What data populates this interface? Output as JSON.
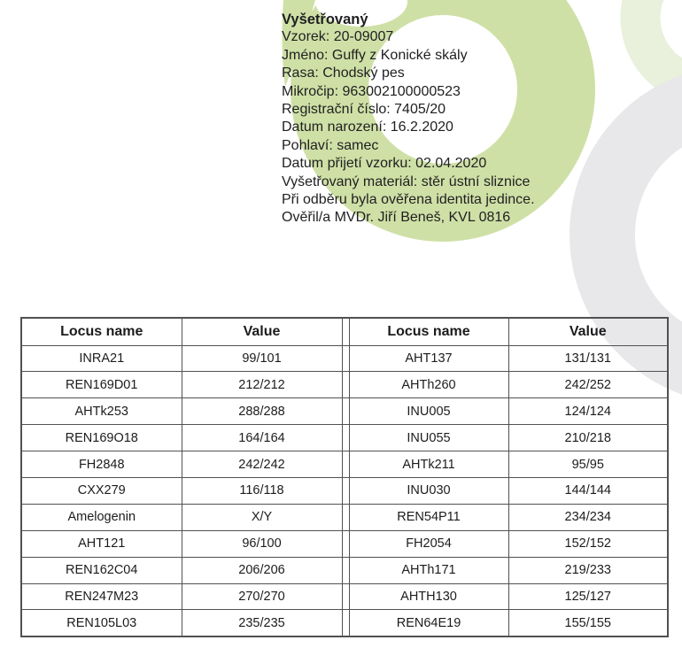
{
  "header": {
    "title": "Vyšetřovaný",
    "lines": [
      "Vzorek: 20-09007",
      "Jméno: Guffy z Konické skály",
      "Rasa: Chodský pes",
      "Mikročip: 963002100000523",
      "Registrační číslo: 7405/20",
      "Datum narození: 16.2.2020",
      "Pohlaví: samec",
      "Datum přijetí vzorku: 02.04.2020",
      "Vyšetřovaný materiál: stěr ústní sliznice",
      "Při odběru byla ověřena identita jedince.",
      "Ověřil/a MVDr. Jiří Beneš, KVL 0816"
    ]
  },
  "table": {
    "col_locus": "Locus name",
    "col_value": "Value",
    "left_rows": [
      {
        "locus": "INRA21",
        "value": "99/101"
      },
      {
        "locus": "REN169D01",
        "value": "212/212"
      },
      {
        "locus": "AHTk253",
        "value": "288/288"
      },
      {
        "locus": "REN169O18",
        "value": "164/164"
      },
      {
        "locus": "FH2848",
        "value": "242/242"
      },
      {
        "locus": "CXX279",
        "value": "116/118"
      },
      {
        "locus": "Amelogenin",
        "value": "X/Y"
      },
      {
        "locus": "AHT121",
        "value": "96/100"
      },
      {
        "locus": "REN162C04",
        "value": "206/206"
      },
      {
        "locus": "REN247M23",
        "value": "270/270"
      },
      {
        "locus": "REN105L03",
        "value": "235/235"
      }
    ],
    "right_rows": [
      {
        "locus": "AHT137",
        "value": "131/131"
      },
      {
        "locus": "AHTh260",
        "value": "242/252"
      },
      {
        "locus": "INU005",
        "value": "124/124"
      },
      {
        "locus": "INU055",
        "value": "210/218"
      },
      {
        "locus": "AHTk211",
        "value": "95/95"
      },
      {
        "locus": "INU030",
        "value": "144/144"
      },
      {
        "locus": "REN54P11",
        "value": "234/234"
      },
      {
        "locus": "FH2054",
        "value": "152/152"
      },
      {
        "locus": "AHTh171",
        "value": "219/233"
      },
      {
        "locus": "AHTH130",
        "value": "125/127"
      },
      {
        "locus": "REN64E19",
        "value": "155/155"
      }
    ]
  },
  "colors": {
    "green": "#cfe0a6",
    "pale_green": "#e9f0db",
    "gray_ring": "#e8e8ea",
    "border": "#515153",
    "text": "#1f1f21",
    "background": "#ffffff"
  }
}
